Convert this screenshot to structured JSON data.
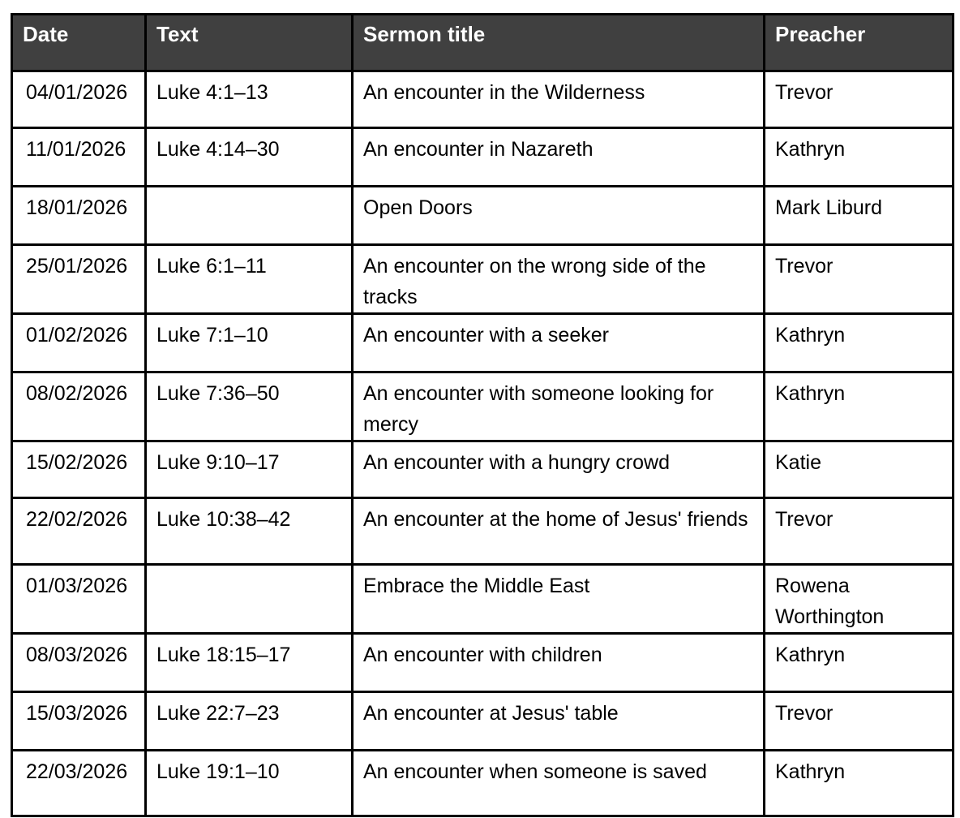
{
  "table": {
    "headers": [
      "Date",
      "Text",
      "Sermon title",
      "Preacher"
    ],
    "header_bg": "#404040",
    "rows": [
      [
        "04/01/2026",
        "Luke 4:1–13",
        "An encounter in the Wilderness",
        "Trevor"
      ],
      [
        "11/01/2026",
        "Luke 4:14–30",
        "An encounter in Nazareth",
        "Kathryn"
      ],
      [
        "18/01/2026",
        "",
        "Open Doors",
        "Mark Liburd"
      ],
      [
        "25/01/2026",
        "Luke 6:1–11",
        "An encounter on the wrong side of the tracks",
        "Trevor"
      ],
      [
        "01/02/2026",
        "Luke 7:1–10",
        "An encounter with a seeker",
        "Kathryn"
      ],
      [
        "08/02/2026",
        "Luke 7:36–50",
        "An encounter with someone looking for mercy",
        "Kathryn"
      ],
      [
        "15/02/2026",
        "Luke 9:10–17",
        "An encounter with a hungry crowd",
        "Katie"
      ],
      [
        "22/02/2026",
        "Luke 10:38–42",
        "An encounter at the home of Jesus' friends",
        "Trevor"
      ],
      [
        "01/03/2026",
        "",
        "Embrace the Middle East",
        "Rowena Worthington"
      ],
      [
        "08/03/2026",
        "Luke 18:15–17",
        "An encounter with children",
        "Kathryn"
      ],
      [
        "15/03/2026",
        "Luke 22:7–23",
        "An encounter at Jesus' table",
        "Trevor"
      ],
      [
        "22/03/2026",
        "Luke 19:1–10",
        "An encounter when someone is saved",
        "Kathryn"
      ]
    ]
  }
}
